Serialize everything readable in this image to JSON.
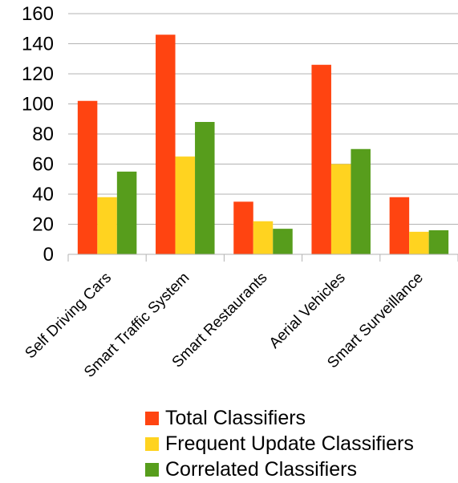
{
  "chart_data": {
    "type": "bar",
    "title": "",
    "xlabel": "",
    "ylabel": "",
    "categories": [
      "Self Driving Cars",
      "Smart Traffic System",
      "Smart Restaurants",
      "Aerial Vehicles",
      "Smart Surveillance"
    ],
    "series": [
      {
        "name": "Total Classifiers",
        "color": "#ff4411",
        "values": [
          102,
          146,
          35,
          126,
          38
        ]
      },
      {
        "name": "Frequent Update Classifiers",
        "color": "#ffd320",
        "values": [
          38,
          65,
          22,
          60,
          15
        ]
      },
      {
        "name": "Correlated Classifiers",
        "color": "#579d1c",
        "values": [
          55,
          88,
          17,
          70,
          16
        ]
      }
    ],
    "ylim": [
      0,
      160
    ],
    "yticks": [
      "0",
      "20",
      "40",
      "60",
      "80",
      "100",
      "120",
      "140",
      "160"
    ],
    "grid": "horizontal",
    "legend": "bottom"
  }
}
